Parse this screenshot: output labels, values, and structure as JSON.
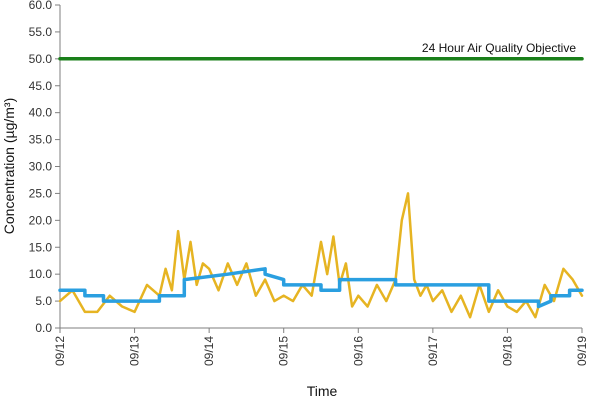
{
  "chart_data": {
    "type": "line",
    "xlabel": "Time",
    "ylabel": "Concentration (µg/m³)",
    "x_ticks": [
      "09/12",
      "09/13",
      "09/14",
      "09/15",
      "09/16",
      "09/17",
      "09/18",
      "09/19"
    ],
    "ylim": [
      0,
      60
    ],
    "y_ticks": [
      "0.0",
      "5.0",
      "10.0",
      "15.0",
      "20.0",
      "25.0",
      "30.0",
      "35.0",
      "40.0",
      "45.0",
      "50.0",
      "55.0",
      "60.0"
    ],
    "grid": false,
    "annotation": "24 Hour Air Quality Objective",
    "series": [
      {
        "color": "#e6b422",
        "x": [
          "09/12 00:00",
          "09/12 04:00",
          "09/12 08:00",
          "09/12 12:00",
          "09/12 16:00",
          "09/12 20:00",
          "09/13 00:00",
          "09/13 04:00",
          "09/13 08:00",
          "09/13 10:00",
          "09/13 12:00",
          "09/13 14:00",
          "09/13 16:00",
          "09/13 18:00",
          "09/13 20:00",
          "09/13 22:00",
          "09/14 00:00",
          "09/14 03:00",
          "09/14 06:00",
          "09/14 09:00",
          "09/14 12:00",
          "09/14 15:00",
          "09/14 18:00",
          "09/14 21:00",
          "09/15 00:00",
          "09/15 03:00",
          "09/15 06:00",
          "09/15 09:00",
          "09/15 12:00",
          "09/15 14:00",
          "09/15 16:00",
          "09/15 18:00",
          "09/15 20:00",
          "09/15 22:00",
          "09/16 00:00",
          "09/16 03:00",
          "09/16 06:00",
          "09/16 09:00",
          "09/16 12:00",
          "09/16 14:00",
          "09/16 16:00",
          "09/16 18:00",
          "09/16 20:00",
          "09/16 22:00",
          "09/17 00:00",
          "09/17 03:00",
          "09/17 06:00",
          "09/17 09:00",
          "09/17 12:00",
          "09/17 15:00",
          "09/17 18:00",
          "09/17 21:00",
          "09/18 00:00",
          "09/18 03:00",
          "09/18 06:00",
          "09/18 09:00",
          "09/18 12:00",
          "09/18 15:00",
          "09/18 18:00",
          "09/18 21:00",
          "09/19 00:00"
        ],
        "values": [
          5,
          7,
          3,
          3,
          6,
          4,
          3,
          8,
          6,
          11,
          7,
          18,
          9,
          16,
          8,
          12,
          11,
          7,
          12,
          8,
          12,
          6,
          9,
          5,
          6,
          5,
          8,
          6,
          16,
          10,
          17,
          8,
          12,
          4,
          6,
          4,
          8,
          5,
          9,
          20,
          25,
          9,
          6,
          8,
          5,
          7,
          3,
          6,
          2,
          8,
          3,
          7,
          4,
          3,
          5,
          2,
          8,
          5,
          11,
          9,
          6
        ]
      },
      {
        "color": "#2a9fe0",
        "x": [
          "09/12 00:00",
          "09/12 08:00",
          "09/12 08:00",
          "09/12 14:00",
          "09/12 14:00",
          "09/13 00:00",
          "09/13 00:00",
          "09/13 08:00",
          "09/13 08:00",
          "09/13 16:00",
          "09/13 16:00",
          "09/14 06:00",
          "09/14 06:00",
          "09/14 18:00",
          "09/14 18:00",
          "09/15 00:00",
          "09/15 00:00",
          "09/15 12:00",
          "09/15 12:00",
          "09/15 18:00",
          "09/15 18:00",
          "09/16 12:00",
          "09/16 12:00",
          "09/17 00:00",
          "09/17 00:00",
          "09/17 18:00",
          "09/17 18:00",
          "09/18 10:00",
          "09/18 10:00",
          "09/18 14:00",
          "09/18 14:00",
          "09/18 20:00",
          "09/18 20:00",
          "09/19 00:00"
        ],
        "values": [
          7,
          7,
          6,
          6,
          5,
          5,
          5,
          5,
          6,
          6,
          9,
          10,
          10,
          11,
          10,
          9,
          8,
          8,
          7,
          7,
          9,
          9,
          8,
          8,
          8,
          8,
          5,
          5,
          4,
          5,
          6,
          6,
          7,
          7
        ]
      },
      {
        "color": "#1a7f1a",
        "x": [
          "09/12 00:00",
          "09/19 00:00"
        ],
        "values": [
          50,
          50
        ]
      }
    ]
  }
}
